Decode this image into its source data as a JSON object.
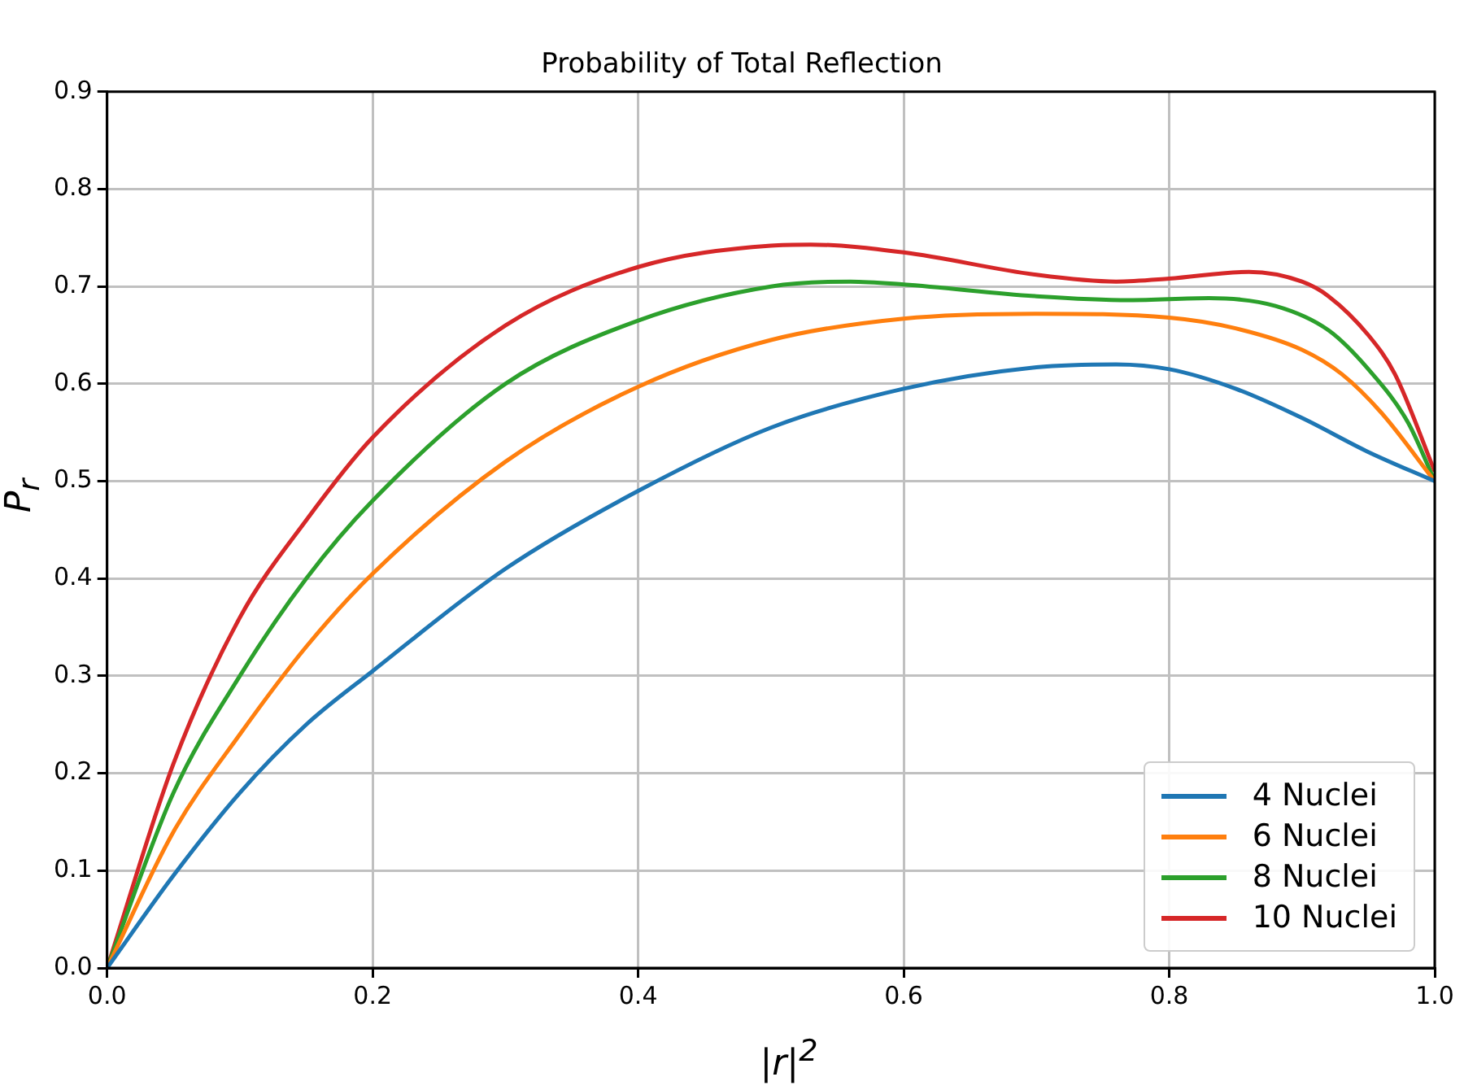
{
  "chart_data": {
    "type": "line",
    "title": "Probability of Total Reflection",
    "xlabel": "|r|$^{2}$",
    "ylabel": "P$_{r}$",
    "xlim": [
      0,
      1
    ],
    "xticks": [
      {
        "value": 0,
        "label": "0.0"
      },
      0.2,
      0.4,
      0.6,
      0.8,
      {
        "value": 1,
        "label": "1.0"
      }
    ],
    "ylim": [
      0,
      0.9
    ],
    "yticks": [
      {
        "value": 0,
        "label": "0.0"
      },
      0.1,
      0.2,
      0.3,
      0.4,
      0.5,
      0.6,
      0.7,
      0.8,
      0.9
    ],
    "grid": true,
    "legend": "bottom right",
    "marker": "none",
    "line_style": "solid",
    "series": [
      {
        "name": "4 Nuclei",
        "color": "#1f77b4",
        "x": [
          0,
          0.05,
          0.1,
          0.15,
          0.2,
          0.3,
          0.4,
          0.5,
          0.6,
          0.7,
          0.76,
          0.8,
          0.85,
          0.9,
          0.95,
          1
        ],
        "values": [
          0,
          0.095,
          0.18,
          0.25,
          0.305,
          0.41,
          0.49,
          0.555,
          0.595,
          0.617,
          0.62,
          0.615,
          0.595,
          0.565,
          0.53,
          0.5
        ]
      },
      {
        "name": "6 Nuclei",
        "color": "#ff7f0e",
        "x": [
          0,
          0.05,
          0.1,
          0.15,
          0.2,
          0.3,
          0.4,
          0.5,
          0.6,
          0.7,
          0.8,
          0.85,
          0.9,
          0.93,
          0.96,
          1
        ],
        "values": [
          0,
          0.14,
          0.24,
          0.33,
          0.405,
          0.52,
          0.597,
          0.645,
          0.667,
          0.672,
          0.668,
          0.657,
          0.635,
          0.61,
          0.57,
          0.5
        ]
      },
      {
        "name": "8 Nuclei",
        "color": "#2ca02c",
        "x": [
          0,
          0.05,
          0.1,
          0.15,
          0.2,
          0.3,
          0.4,
          0.5,
          0.56,
          0.6,
          0.7,
          0.77,
          0.83,
          0.88,
          0.92,
          0.95,
          0.98,
          1
        ],
        "values": [
          0,
          0.18,
          0.3,
          0.4,
          0.48,
          0.6,
          0.665,
          0.7,
          0.705,
          0.702,
          0.69,
          0.686,
          0.688,
          0.68,
          0.655,
          0.615,
          0.56,
          0.5
        ]
      },
      {
        "name": "10 Nuclei",
        "color": "#d62728",
        "x": [
          0,
          0.05,
          0.1,
          0.15,
          0.2,
          0.3,
          0.4,
          0.5,
          0.53,
          0.6,
          0.7,
          0.76,
          0.8,
          0.86,
          0.9,
          0.92,
          0.95,
          0.97,
          1
        ],
        "values": [
          0,
          0.21,
          0.36,
          0.46,
          0.545,
          0.66,
          0.72,
          0.742,
          0.743,
          0.735,
          0.712,
          0.705,
          0.708,
          0.715,
          0.705,
          0.69,
          0.65,
          0.61,
          0.51
        ]
      }
    ]
  }
}
